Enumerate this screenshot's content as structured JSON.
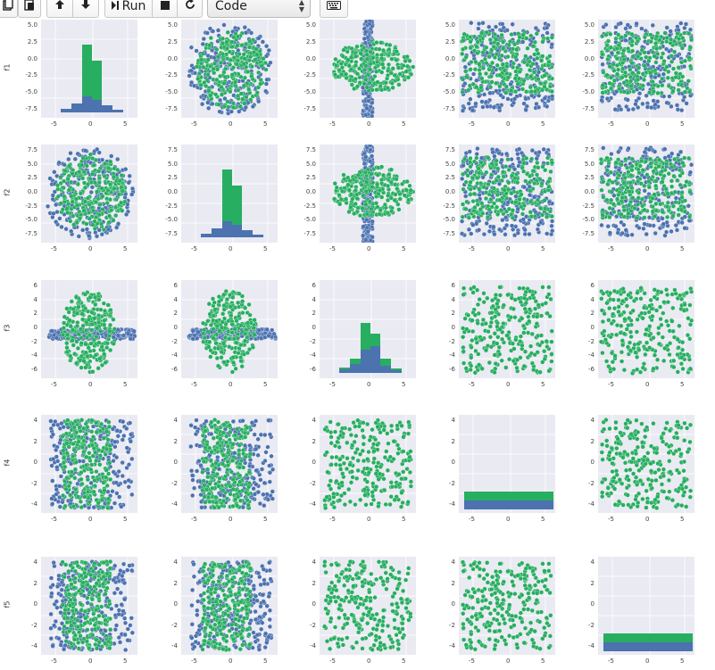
{
  "toolbar": {
    "copy_icon": "copy-icon",
    "paste_icon": "paste-icon",
    "move_up_icon": "arrow-up-icon",
    "move_down_icon": "arrow-down-icon",
    "run_label": "Run",
    "stop_icon": "stop-icon",
    "restart_icon": "restart-icon",
    "cell_type_selected": "Code",
    "keyboard_icon": "keyboard-icon"
  },
  "colors": {
    "blue": "#4c72b0",
    "green": "#27ae60",
    "panel_bg": "#eaeaf2",
    "grid": "#ffffff"
  },
  "chart_data": {
    "type": "scatter",
    "variables": [
      "f1",
      "f2",
      "f3",
      "f4",
      "f5"
    ],
    "hue_colors": [
      "#4c72b0",
      "#27ae60"
    ],
    "diagonal": "histogram",
    "off_diagonal": "scatter",
    "x_ticks": {
      "f1": [
        "-5",
        "0",
        "5"
      ],
      "f2": [
        "-5",
        "0",
        "5"
      ],
      "f3": [
        "-5",
        "0",
        "5"
      ],
      "f4": [
        "-5",
        "0",
        "5"
      ],
      "f5": [
        "-5",
        "0",
        "5"
      ]
    },
    "y_ticks": {
      "f1": [
        "5.0",
        "2.5",
        "0.0",
        "-2.5",
        "-5.0",
        "-7.5"
      ],
      "f2": [
        "7.5",
        "5.0",
        "2.5",
        "0.0",
        "-2.5",
        "-5.0",
        "-7.5"
      ],
      "f3": [
        "6",
        "4",
        "2",
        "0",
        "-2",
        "-4",
        "-6"
      ],
      "f4": [
        "4",
        "2",
        "0",
        "-2",
        "-4"
      ],
      "f5": [
        "4",
        "2",
        "0",
        "-2",
        "-4"
      ]
    },
    "y_labels": [
      "f1",
      "f2",
      "f3",
      "f4",
      "f5"
    ],
    "ranges": {
      "f1": [
        -8.5,
        8.5
      ],
      "f2": [
        -8.5,
        8.5
      ],
      "f3": [
        -7,
        7
      ],
      "f4": [
        -5.5,
        5.5
      ],
      "f5": [
        -5.5,
        5.5
      ]
    }
  }
}
